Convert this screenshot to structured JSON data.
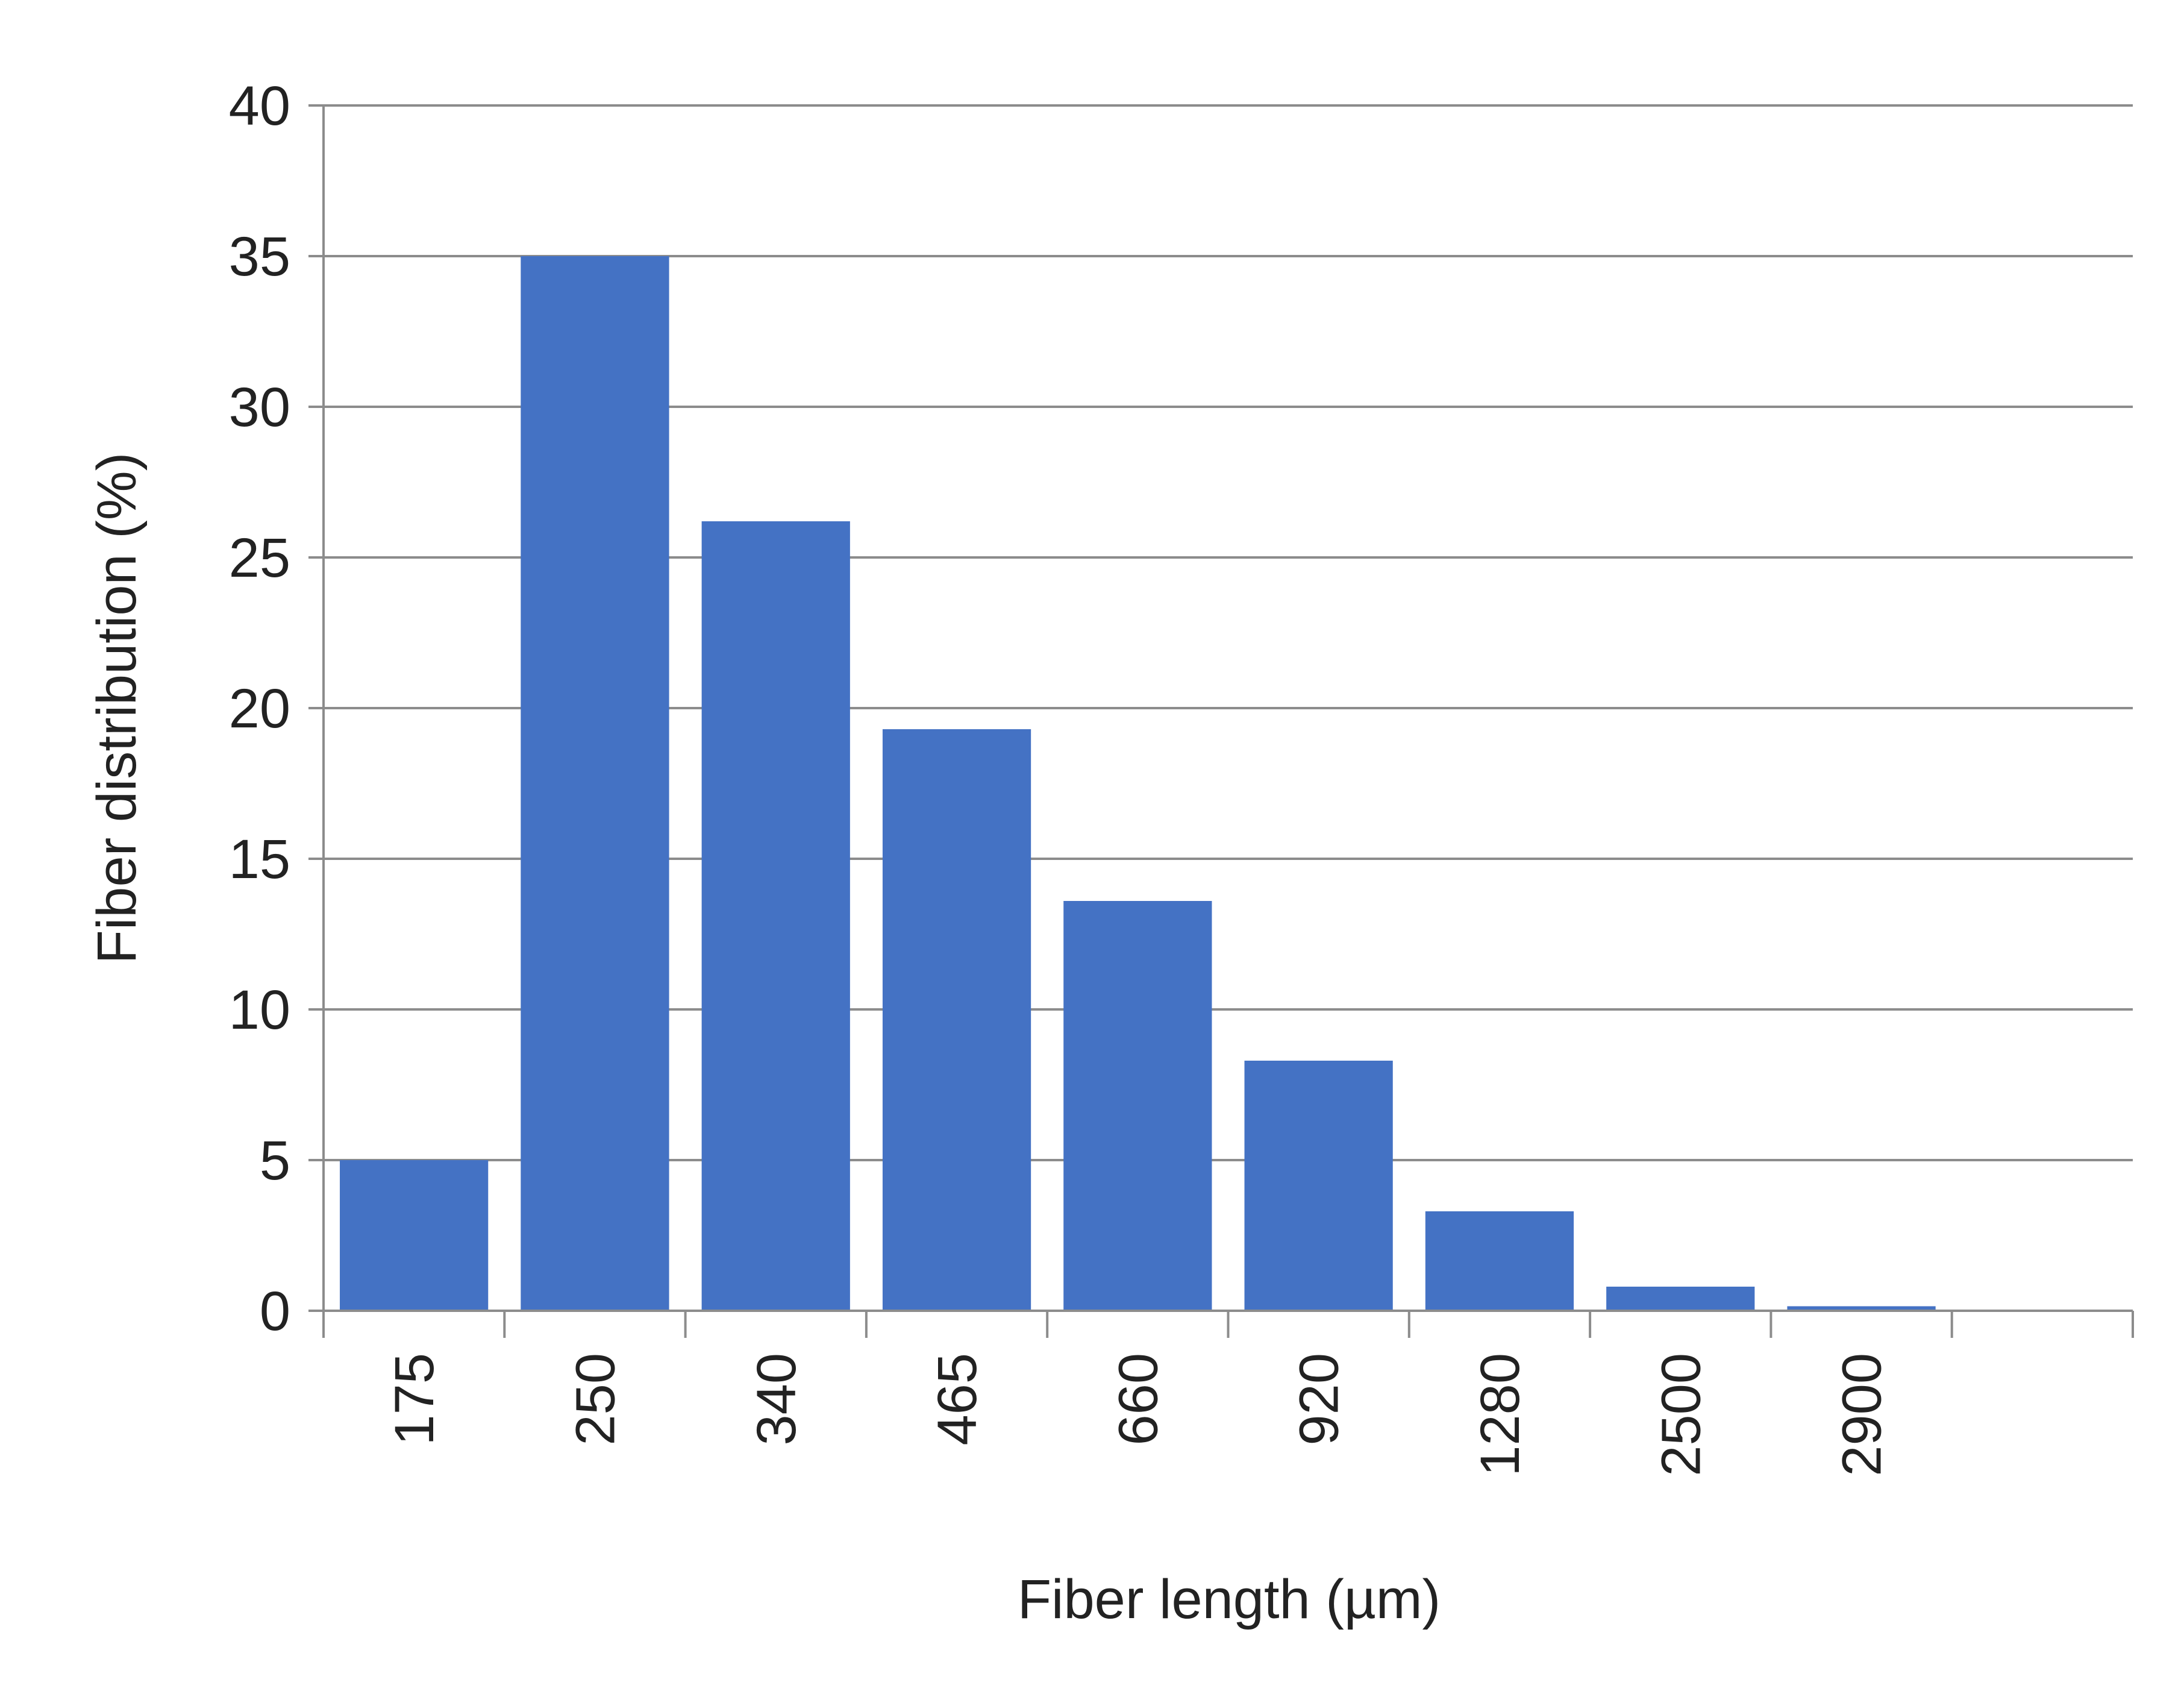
{
  "chart_data": {
    "type": "bar",
    "title": "",
    "xlabel": "Fiber length (µm)",
    "ylabel": "Fiber distribution (%)",
    "categories": [
      "175",
      "250",
      "340",
      "465",
      "660",
      "920",
      "1280",
      "2500",
      "2900",
      ""
    ],
    "values": [
      5.0,
      35.0,
      26.2,
      19.3,
      13.6,
      8.3,
      3.3,
      0.8,
      0.15,
      null
    ],
    "ylim": [
      0,
      40
    ],
    "yticks": [
      "0",
      "5",
      "10",
      "15",
      "20",
      "25",
      "30",
      "35",
      "40"
    ],
    "grid": true,
    "legend": "none",
    "colors": {
      "bar": "#4472C4",
      "grid": "#8C8C8C",
      "axis": "#8C8C8C",
      "text": "#222222"
    }
  }
}
